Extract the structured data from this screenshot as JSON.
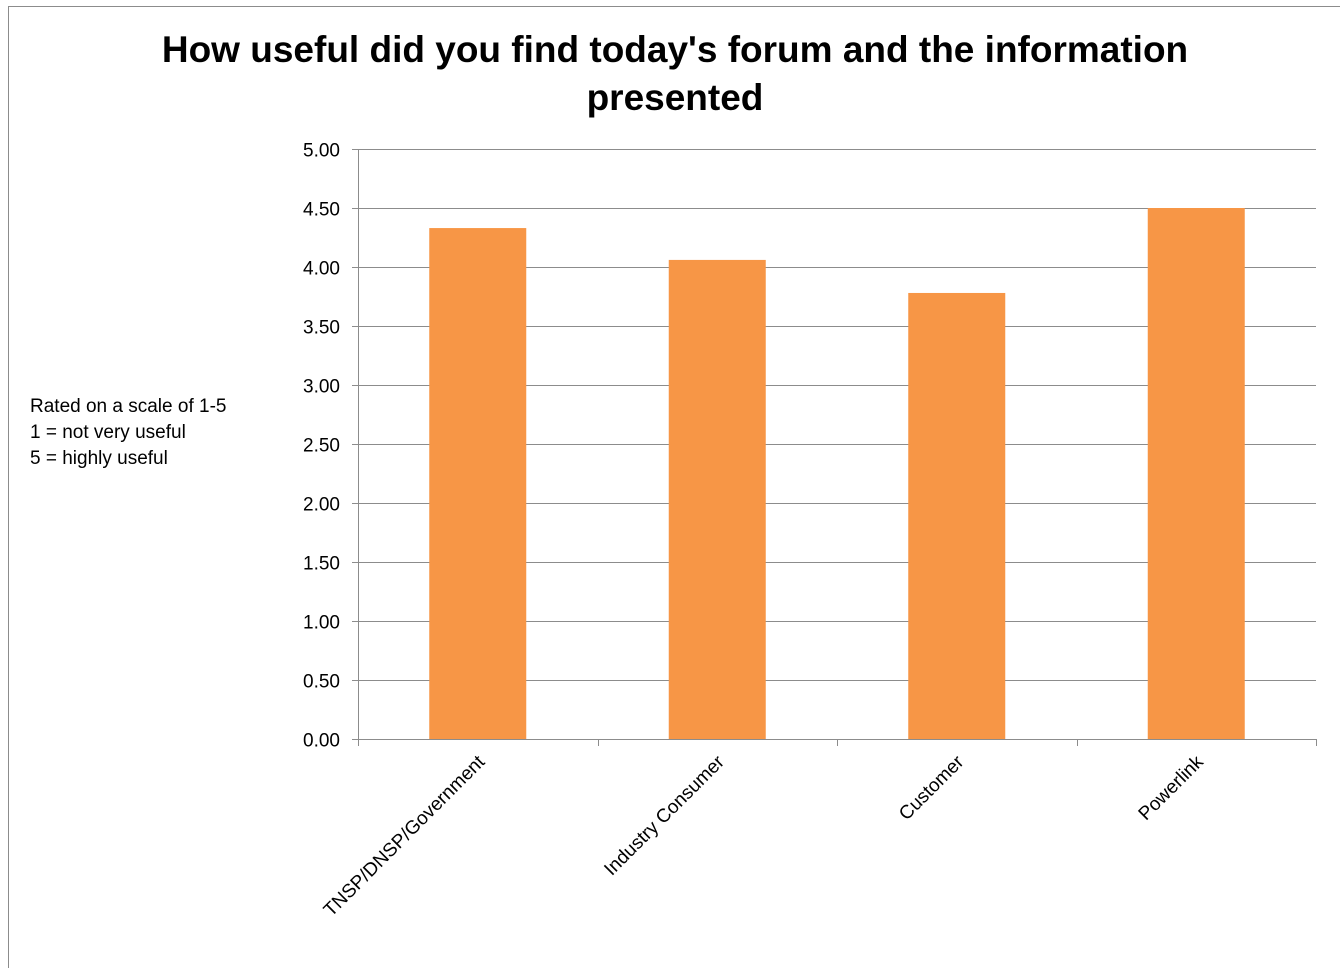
{
  "chart_data": {
    "type": "bar",
    "title": "How useful did you find today's forum and the information presented",
    "categories": [
      "TNSP/DNSP/Government",
      "Industry Consumer",
      "Customer",
      "Powerlink"
    ],
    "series": [
      {
        "values": [
          4.33,
          4.06,
          3.78,
          4.5
        ]
      }
    ],
    "ylim": [
      0,
      5
    ],
    "yticks": [
      "0.00",
      "0.50",
      "1.00",
      "1.50",
      "2.00",
      "2.50",
      "3.00",
      "3.50",
      "4.00",
      "4.50",
      "5.00"
    ],
    "ytick_values": [
      0,
      0.5,
      1,
      1.5,
      2,
      2.5,
      3,
      3.5,
      4,
      4.5,
      5
    ],
    "xlabel": "",
    "ylabel": "",
    "grid": "horizontal",
    "legend": "none",
    "bar_color": "#f79646",
    "gridline_color": "#8c8c8c",
    "annotation": [
      "Rated on a scale of 1-5",
      "1 = not very useful",
      "5 = highly useful"
    ]
  }
}
